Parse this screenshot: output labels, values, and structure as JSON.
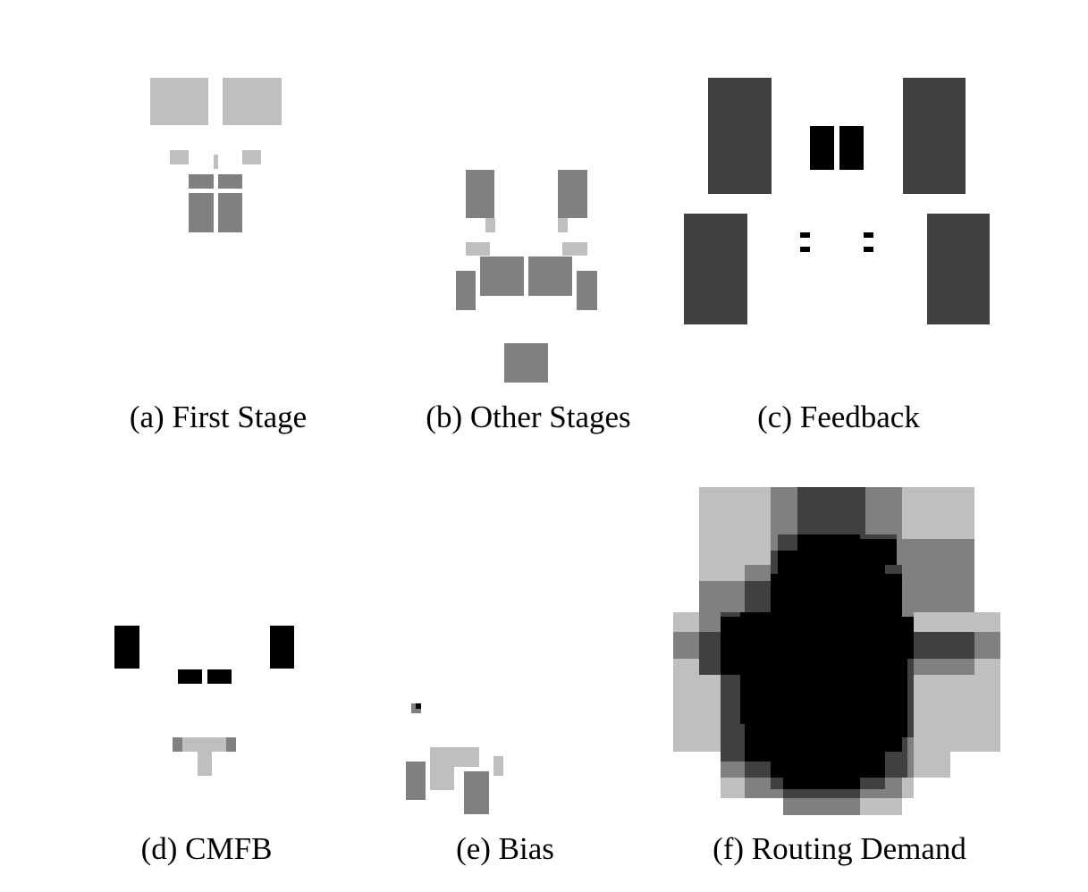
{
  "figure": {
    "panels": [
      {
        "caption": "(a) First Stage",
        "blocks": [
          {
            "tone": "light"
          },
          {
            "tone": "light"
          },
          {
            "tone": "light"
          },
          {
            "tone": "light"
          },
          {
            "tone": "light"
          },
          {
            "tone": "medium"
          },
          {
            "tone": "medium"
          },
          {
            "tone": "medium"
          },
          {
            "tone": "medium"
          }
        ]
      },
      {
        "caption": "(b) Other Stages",
        "blocks": [
          {
            "tone": "medium"
          },
          {
            "tone": "medium"
          },
          {
            "tone": "light"
          },
          {
            "tone": "light"
          },
          {
            "tone": "light"
          },
          {
            "tone": "light"
          },
          {
            "tone": "medium"
          },
          {
            "tone": "medium"
          },
          {
            "tone": "medium"
          },
          {
            "tone": "medium"
          },
          {
            "tone": "medium"
          }
        ]
      },
      {
        "caption": "(c) Feedback",
        "blocks": [
          {
            "tone": "dark"
          },
          {
            "tone": "dark"
          },
          {
            "tone": "black"
          },
          {
            "tone": "black"
          },
          {
            "tone": "dark"
          },
          {
            "tone": "dark"
          },
          {
            "tone": "black"
          },
          {
            "tone": "black"
          },
          {
            "tone": "black"
          },
          {
            "tone": "black"
          }
        ]
      },
      {
        "caption": "(d) CMFB",
        "blocks": [
          {
            "tone": "black"
          },
          {
            "tone": "black"
          },
          {
            "tone": "black"
          },
          {
            "tone": "black"
          },
          {
            "tone": "light"
          },
          {
            "tone": "light"
          },
          {
            "tone": "medium"
          },
          {
            "tone": "medium"
          }
        ]
      },
      {
        "caption": "(e) Bias",
        "blocks": [
          {
            "tone": "medium"
          },
          {
            "tone": "black"
          },
          {
            "tone": "light"
          },
          {
            "tone": "light"
          },
          {
            "tone": "medium"
          },
          {
            "tone": "medium"
          },
          {
            "tone": "light"
          }
        ]
      },
      {
        "caption": "(f) Routing Demand",
        "blocks": [
          {
            "tone": "light"
          },
          {
            "tone": "medium"
          },
          {
            "tone": "dark"
          },
          {
            "tone": "black"
          }
        ]
      }
    ],
    "palette": {
      "light": "#bfbfbf",
      "medium": "#808080",
      "dark": "#404040",
      "black": "#000000",
      "background": "#ffffff"
    }
  }
}
